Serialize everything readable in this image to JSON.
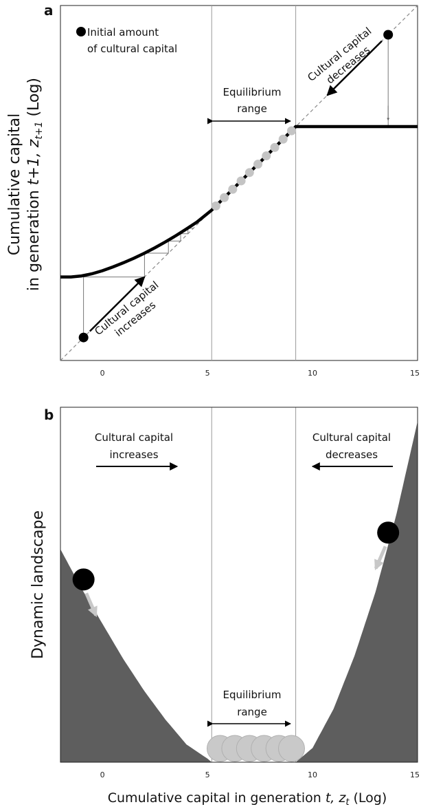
{
  "chart_data": [
    {
      "panel": "a",
      "type": "line",
      "ylabel_line1": "Cumulative capital",
      "ylabel_line2_prefix": "in generation ",
      "ylabel_line2_var": "t+1, z",
      "ylabel_line2_sub": "t+1",
      "ylabel_line2_suffix": " (Log)",
      "xlim": [
        -2,
        15
      ],
      "ylim": [
        -2,
        15
      ],
      "xticks": [
        0,
        5,
        10,
        15
      ],
      "equilibrium_range": [
        5.2,
        9.2
      ],
      "curve": {
        "x": [
          -2,
          -1.5,
          -1,
          -0.5,
          0,
          0.5,
          1,
          1.5,
          2,
          2.5,
          3,
          3.5,
          4,
          4.5,
          5.2,
          6,
          7,
          8,
          9.2,
          10,
          11,
          12,
          13,
          14,
          15
        ],
        "y": [
          2.0,
          2.0,
          2.05,
          2.15,
          2.3,
          2.48,
          2.68,
          2.9,
          3.14,
          3.4,
          3.68,
          3.98,
          4.3,
          4.63,
          5.2,
          6.0,
          7.0,
          8.0,
          9.2,
          9.2,
          9.2,
          9.2,
          9.2,
          9.2,
          9.2
        ]
      },
      "equilibrium_points_x": [
        5.4,
        5.8,
        6.2,
        6.6,
        7.0,
        7.4,
        7.8,
        8.2,
        8.6,
        9.0
      ],
      "initial_points": [
        {
          "x": -0.9,
          "y": -0.9
        },
        {
          "x": 13.6,
          "y": 13.6
        }
      ],
      "cobweb_low": [
        [
          -0.9,
          -0.9
        ],
        [
          -0.9,
          2.0
        ],
        [
          2.0,
          2.0
        ],
        [
          2.0,
          3.14
        ],
        [
          3.14,
          3.14
        ],
        [
          3.14,
          3.72
        ],
        [
          3.72,
          3.72
        ],
        [
          3.72,
          4.07
        ],
        [
          4.07,
          4.07
        ],
        [
          4.07,
          4.33
        ],
        [
          4.33,
          4.33
        ]
      ],
      "cobweb_high": [
        [
          13.6,
          13.6
        ],
        [
          13.6,
          9.2
        ],
        [
          9.2,
          9.2
        ]
      ],
      "legend_text_1": "Initial amount",
      "legend_text_2": "of cultural capital",
      "equilibrium_label_1": "Equilibrium",
      "equilibrium_label_2": "range",
      "increase_label_1": "Cultural capital",
      "increase_label_2": "increases",
      "decrease_label_1": "Cultural capital",
      "decrease_label_2": "decreases"
    },
    {
      "panel": "b",
      "type": "area",
      "ylabel": "Dynamic landscape",
      "xlabel_prefix": "Cumulative capital in generation ",
      "xlabel_var": "t, z",
      "xlabel_sub": "t",
      "xlabel_suffix": " (Log)",
      "xlim": [
        -2,
        15
      ],
      "xticks": [
        0,
        5,
        10,
        15
      ],
      "equilibrium_range": [
        5.2,
        9.2
      ],
      "landscape": {
        "x": [
          -2,
          -1,
          0,
          1,
          2,
          3,
          4,
          5,
          5.2,
          9.2,
          10,
          11,
          12,
          13,
          14,
          15
        ],
        "height": [
          0.6,
          0.49,
          0.39,
          0.29,
          0.2,
          0.12,
          0.05,
          0.01,
          0.0,
          0.0,
          0.04,
          0.15,
          0.3,
          0.48,
          0.7,
          0.96
        ]
      },
      "balls": [
        {
          "x": -0.9
        },
        {
          "x": 13.6
        }
      ],
      "equilibrium_circles_x": [
        5.6,
        6.3,
        7.0,
        7.7,
        8.4,
        9.0
      ],
      "increase_label_1": "Cultural capital",
      "increase_label_2": "increases",
      "decrease_label_1": "Cultural capital",
      "decrease_label_2": "decreases",
      "equilibrium_label_1": "Equilibrium",
      "equilibrium_label_2": "range"
    }
  ]
}
